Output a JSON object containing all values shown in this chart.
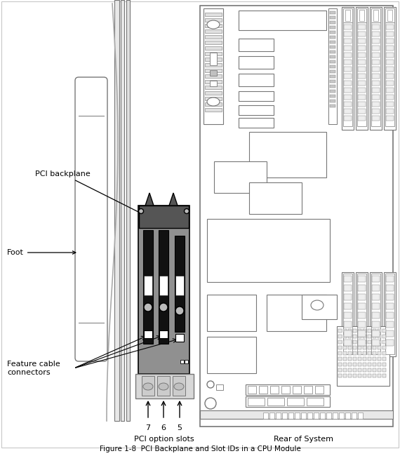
{
  "bg": "#ffffff",
  "lc": "#777777",
  "blk": "#000000",
  "dg": "#555555",
  "mg": "#909090",
  "lg": "#bbbbbb",
  "wh": "#ffffff",
  "title": "Figure 1-8  PCI Backplane and Slot IDs in a CPU Module",
  "lbl_backplane": "PCI backplane",
  "lbl_foot": "Foot",
  "lbl_feature": "Feature cable\nconnectors",
  "lbl_slots_label": "PCI option slots",
  "lbl_rear": "Rear of System",
  "slot_nums": [
    "7",
    "6",
    "5"
  ]
}
